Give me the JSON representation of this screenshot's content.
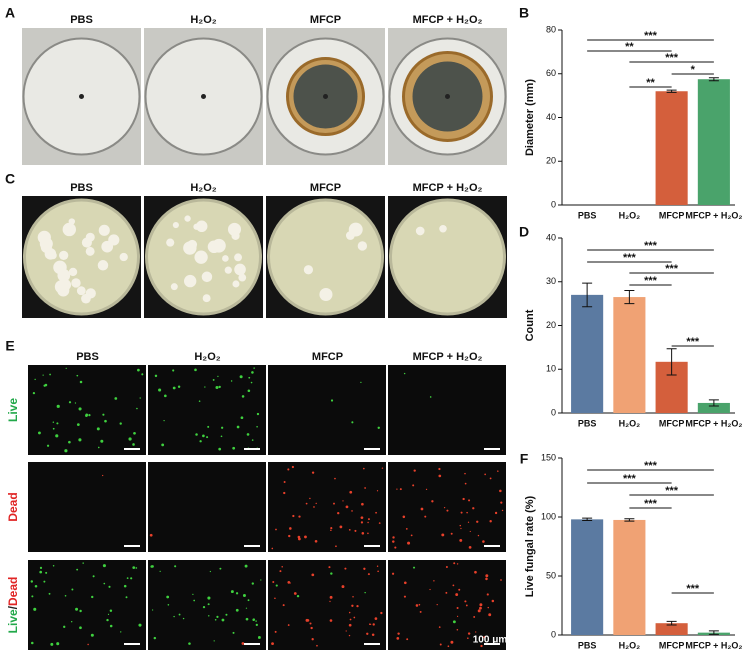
{
  "photo_panels": [
    {
      "letter": "A",
      "columns": [
        "PBS",
        "H₂O₂",
        "MFCP",
        "MFCP + H₂O₂"
      ]
    },
    {
      "letter": "C",
      "columns": [
        "PBS",
        "H₂O₂",
        "MFCP",
        "MFCP + H₂O₂"
      ]
    },
    {
      "letter": "E",
      "columns": [
        "PBS",
        "H₂O₂",
        "MFCP",
        "MFCP + H₂O₂"
      ],
      "rows": [
        [
          {
            "text": "Live",
            "color": "#22a84a"
          }
        ],
        [
          {
            "text": "Dead",
            "color": "#e02424"
          }
        ],
        [
          {
            "text": "Live",
            "color": "#22a84a"
          },
          {
            "text": "/",
            "color": "#222222"
          },
          {
            "text": "Dead",
            "color": "#e02424"
          }
        ]
      ],
      "scale_bar": "100 μm"
    }
  ],
  "chart_data": [
    {
      "type": "bar",
      "letter": "B",
      "ylabel": "Diameter (mm)",
      "categories": [
        "PBS",
        "H₂O₂",
        "MFCP",
        "MFCP + H₂O₂"
      ],
      "values": [
        0,
        0,
        52,
        57.5
      ],
      "errors": [
        0,
        0,
        0.5,
        0.7
      ],
      "colors": [
        "#5b7aa1",
        "#f0a274",
        "#d45f3c",
        "#4aa36b"
      ],
      "ylim": [
        0,
        80
      ],
      "yticks": [
        0,
        20,
        40,
        60,
        80
      ],
      "significance": [
        {
          "from": 0,
          "to": 3,
          "label": "***"
        },
        {
          "from": 0,
          "to": 2,
          "label": "**"
        },
        {
          "from": 1,
          "to": 3,
          "label": "***"
        },
        {
          "from": 2,
          "to": 3,
          "label": "*"
        },
        {
          "from": 1,
          "to": 2,
          "label": "**"
        }
      ]
    },
    {
      "type": "bar",
      "letter": "D",
      "ylabel": "Count",
      "categories": [
        "PBS",
        "H₂O₂",
        "MFCP",
        "MFCP + H₂O₂"
      ],
      "values": [
        27,
        26.5,
        11.7,
        2.3
      ],
      "errors": [
        2.7,
        1.5,
        3,
        0.7
      ],
      "colors": [
        "#5b7aa1",
        "#f0a274",
        "#d45f3c",
        "#4aa36b"
      ],
      "ylim": [
        0,
        40
      ],
      "yticks": [
        0,
        10,
        20,
        30,
        40
      ],
      "significance": [
        {
          "from": 0,
          "to": 3,
          "label": "***"
        },
        {
          "from": 0,
          "to": 2,
          "label": "***"
        },
        {
          "from": 1,
          "to": 3,
          "label": "***"
        },
        {
          "from": 1,
          "to": 2,
          "label": "***"
        },
        {
          "from": 2,
          "to": 3,
          "label": "***"
        }
      ]
    },
    {
      "type": "bar",
      "letter": "F",
      "ylabel": "Live fungal rate (%)",
      "categories": [
        "PBS",
        "H₂O₂",
        "MFCP",
        "MFCP + H₂O₂"
      ],
      "values": [
        98,
        97.5,
        10,
        2
      ],
      "errors": [
        1,
        1,
        1.5,
        1.5
      ],
      "colors": [
        "#5b7aa1",
        "#f0a274",
        "#d45f3c",
        "#4aa36b"
      ],
      "ylim": [
        0,
        150
      ],
      "yticks": [
        0,
        50,
        100,
        150
      ],
      "significance": [
        {
          "from": 0,
          "to": 3,
          "label": "***"
        },
        {
          "from": 0,
          "to": 2,
          "label": "***"
        },
        {
          "from": 1,
          "to": 3,
          "label": "***"
        },
        {
          "from": 1,
          "to": 2,
          "label": "***"
        },
        {
          "from": 2,
          "to": 3,
          "label": "***"
        }
      ]
    }
  ]
}
